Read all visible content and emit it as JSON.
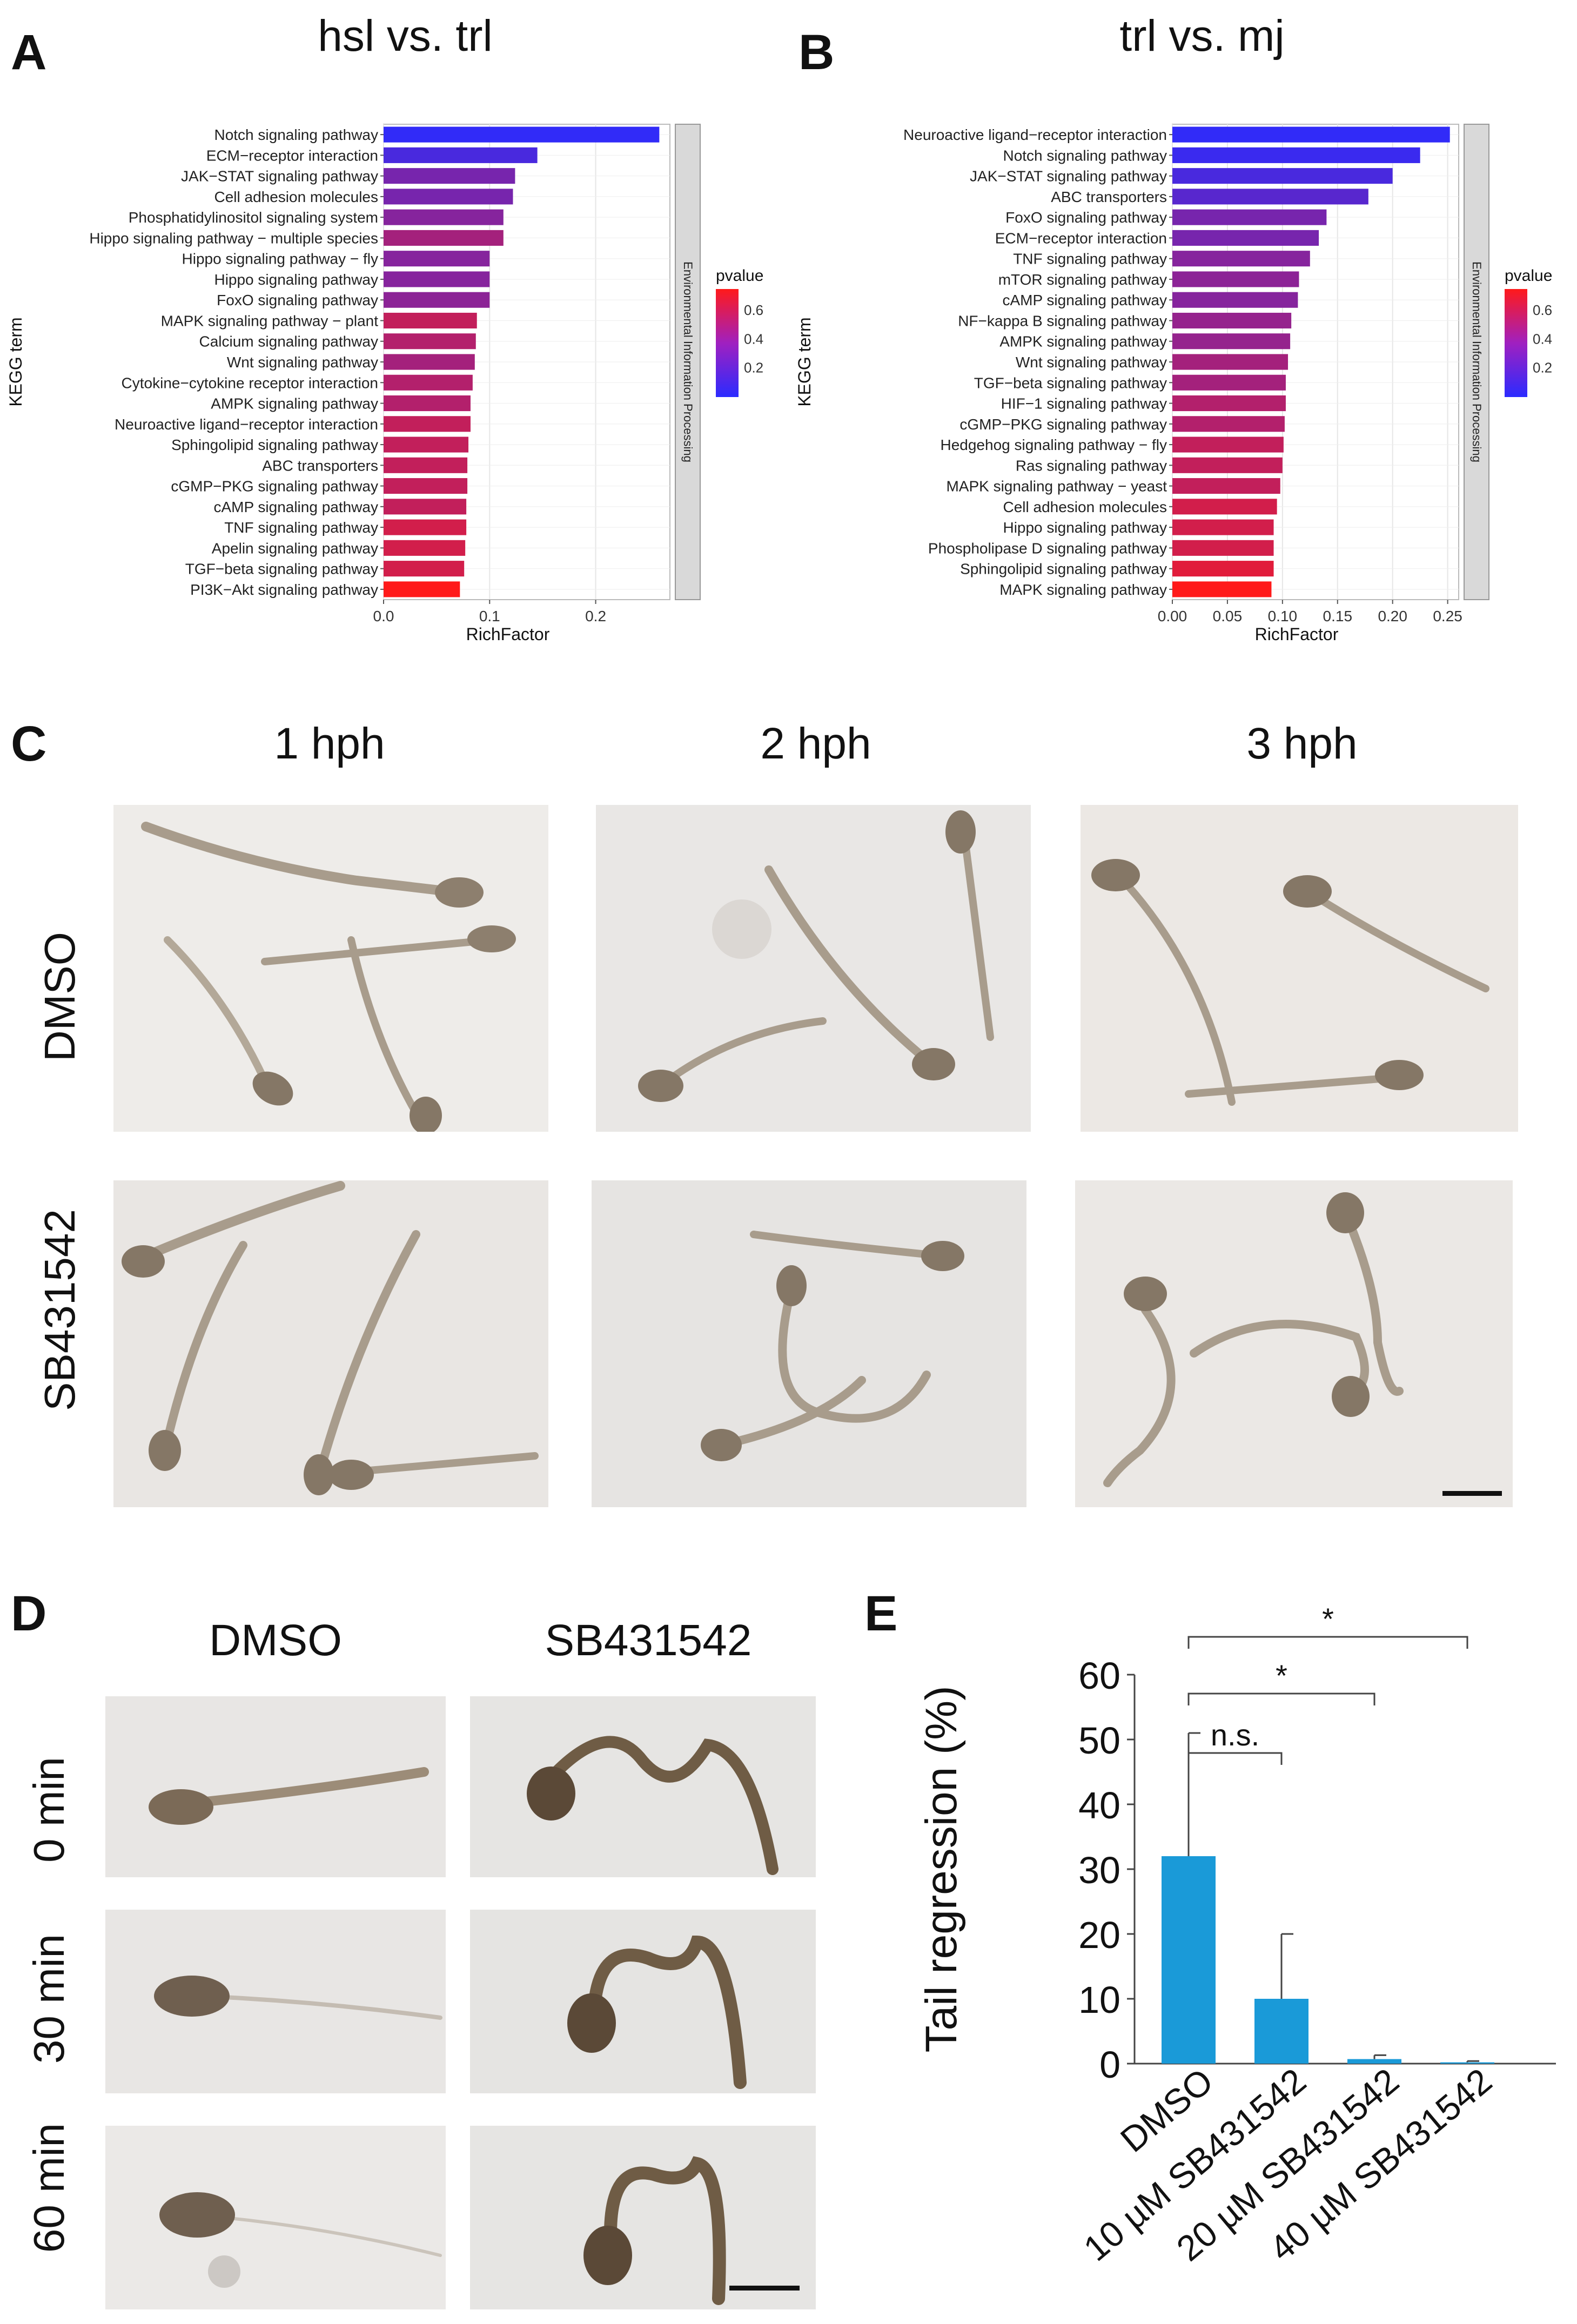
{
  "panels": {
    "A": {
      "letter": "A",
      "title": "hsl vs. trl",
      "y_axis_label": "KEGG term",
      "x_axis_label": "RichFactor",
      "facet_label": "Environmental Information Processing",
      "legend_title": "pvalue",
      "legend_ticks": [
        "0.6",
        "0.4",
        "0.2"
      ],
      "x_ticks": [
        "0.0",
        "0.1",
        "0.2"
      ]
    },
    "B": {
      "letter": "B",
      "title": "trl vs. mj",
      "y_axis_label": "KEGG term",
      "x_axis_label": "RichFactor",
      "facet_label": "Environmental Information Processing",
      "legend_title": "pvalue",
      "legend_ticks": [
        "0.6",
        "0.4",
        "0.2"
      ],
      "x_ticks": [
        "0.00",
        "0.05",
        "0.10",
        "0.15",
        "0.20",
        "0.25"
      ]
    },
    "C": {
      "letter": "C",
      "col_labels": [
        "1 hph",
        "2 hph",
        "3 hph"
      ],
      "row_labels": [
        "DMSO",
        "SB431542"
      ]
    },
    "D": {
      "letter": "D",
      "col_labels": [
        "DMSO",
        "SB431542"
      ],
      "row_labels": [
        "0 min",
        "30 min",
        "60 min"
      ]
    },
    "E": {
      "letter": "E",
      "y_axis_label": "Tail regression (%)",
      "y_ticks": [
        "0",
        "10",
        "20",
        "30",
        "40",
        "50",
        "60"
      ],
      "sig_labels": [
        "n.s.",
        "*",
        "*"
      ]
    }
  },
  "chart_data": [
    {
      "type": "bar",
      "orientation": "horizontal",
      "title": "hsl vs. trl",
      "xlabel": "RichFactor",
      "ylabel": "KEGG term",
      "xlim": [
        0,
        0.27
      ],
      "categories": [
        "Notch signaling pathway",
        "ECM−receptor interaction",
        "JAK−STAT signaling pathway",
        "Cell adhesion molecules",
        "Phosphatidylinositol signaling system",
        "Hippo signaling pathway − multiple species",
        "Hippo signaling pathway − fly",
        "Hippo signaling pathway",
        "FoxO signaling pathway",
        "MAPK signaling pathway − plant",
        "Calcium signaling pathway",
        "Wnt signaling pathway",
        "Cytokine−cytokine receptor interaction",
        "AMPK signaling pathway",
        "Neuroactive ligand−receptor interaction",
        "Sphingolipid signaling pathway",
        "ABC transporters",
        "cGMP−PKG signaling pathway",
        "cAMP signaling pathway",
        "TNF signaling pathway",
        "Apelin signaling pathway",
        "TGF−beta signaling pathway",
        "PI3K−Akt signaling pathway"
      ],
      "values": [
        0.26,
        0.145,
        0.124,
        0.122,
        0.113,
        0.113,
        0.1,
        0.1,
        0.1,
        0.088,
        0.087,
        0.086,
        0.084,
        0.082,
        0.082,
        0.08,
        0.079,
        0.079,
        0.078,
        0.078,
        0.077,
        0.076,
        0.072
      ],
      "pvalues": [
        0.02,
        0.1,
        0.25,
        0.25,
        0.3,
        0.4,
        0.3,
        0.3,
        0.32,
        0.5,
        0.45,
        0.4,
        0.45,
        0.45,
        0.5,
        0.5,
        0.5,
        0.5,
        0.5,
        0.55,
        0.55,
        0.55,
        0.7
      ],
      "legend": {
        "title": "pvalue",
        "ticks": [
          0.6,
          0.4,
          0.2
        ],
        "low_color": "#2b2bff",
        "high_color": "#ff1a1a",
        "placement": "right"
      },
      "facet": "Environmental Information Processing",
      "grid": true
    },
    {
      "type": "bar",
      "orientation": "horizontal",
      "title": "trl vs. mj",
      "xlabel": "RichFactor",
      "ylabel": "KEGG term",
      "xlim": [
        0,
        0.26
      ],
      "categories": [
        "Neuroactive ligand−receptor interaction",
        "Notch signaling pathway",
        "JAK−STAT signaling pathway",
        "ABC transporters",
        "FoxO signaling pathway",
        "ECM−receptor interaction",
        "TNF signaling pathway",
        "mTOR signaling pathway",
        "cAMP signaling pathway",
        "NF−kappa B signaling pathway",
        "AMPK signaling pathway",
        "Wnt signaling pathway",
        "TGF−beta signaling pathway",
        "HIF−1 signaling pathway",
        "cGMP−PKG signaling pathway",
        "Hedgehog signaling pathway − fly",
        "Ras signaling pathway",
        "MAPK signaling pathway − yeast",
        "Cell adhesion molecules",
        "Hippo signaling pathway",
        "Phospholipase D signaling pathway",
        "Sphingolipid signaling pathway",
        "MAPK signaling pathway"
      ],
      "values": [
        0.252,
        0.225,
        0.2,
        0.178,
        0.14,
        0.133,
        0.125,
        0.115,
        0.114,
        0.108,
        0.107,
        0.105,
        0.103,
        0.103,
        0.102,
        0.101,
        0.1,
        0.098,
        0.095,
        0.092,
        0.092,
        0.092,
        0.09
      ],
      "pvalues": [
        0.02,
        0.05,
        0.1,
        0.15,
        0.25,
        0.25,
        0.3,
        0.32,
        0.3,
        0.35,
        0.35,
        0.4,
        0.4,
        0.45,
        0.45,
        0.5,
        0.5,
        0.5,
        0.55,
        0.55,
        0.55,
        0.6,
        0.7
      ],
      "legend": {
        "title": "pvalue",
        "ticks": [
          0.6,
          0.4,
          0.2
        ],
        "low_color": "#2b2bff",
        "high_color": "#ff1a1a",
        "placement": "right"
      },
      "facet": "Environmental Information Processing",
      "grid": true
    },
    {
      "type": "bar",
      "title": "",
      "ylabel": "Tail regression (%)",
      "ylim": [
        0,
        60
      ],
      "categories": [
        "DMSO",
        "10 µM SB431542",
        "20 µM SB431542",
        "40 µM SB431542"
      ],
      "values": [
        32,
        10,
        0.7,
        0.2
      ],
      "errors": [
        19,
        10,
        0.6,
        0.2
      ],
      "bar_color": "#1a9ad8",
      "significance": [
        {
          "from": 0,
          "to": 1,
          "label": "n.s."
        },
        {
          "from": 0,
          "to": 2,
          "label": "*"
        },
        {
          "from": 0,
          "to": 3,
          "label": "*"
        }
      ]
    }
  ]
}
